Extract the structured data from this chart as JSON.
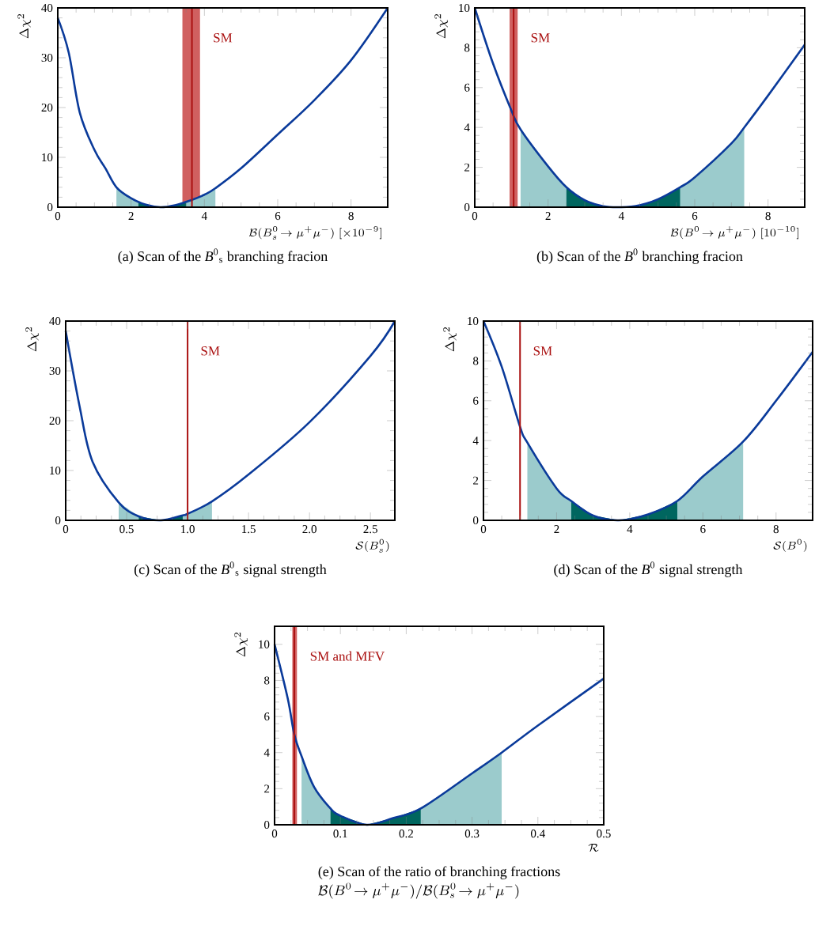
{
  "chart_data": [
    {
      "type": "line",
      "title": "(a) Scan of the *B*$^{0}$$_{s}$ branching fracion",
      "xlabel": "\\mathcal{B}(B^0_s\\!\\to\\mu^+\\mu^-)\\;[\\times10^{-9}]",
      "ylabel": "\\Delta\\chi^2",
      "xlim": [
        0,
        9
      ],
      "xticks": [
        0,
        2,
        4,
        6,
        8
      ],
      "ylim": [
        0,
        40
      ],
      "yticks": [
        0,
        10,
        20,
        30,
        40
      ],
      "series": [
        {
          "type": "area",
          "color": "#9bcbcc",
          "x": [
            1.6,
            2,
            2.4,
            2.8,
            3.2,
            3.6,
            4,
            4.3
          ],
          "values": [
            4,
            1.8,
            0.5,
            0,
            0.4,
            1.3,
            2.5,
            3.8
          ]
        },
        {
          "type": "area",
          "color": "#00665f",
          "x": [
            2.2,
            2.4,
            2.8,
            3.2,
            3.5
          ],
          "values": [
            1,
            0.5,
            0,
            0.4,
            1.1
          ]
        },
        {
          "color": "#0a3a9a",
          "x": [
            0,
            0.3,
            0.6,
            1,
            1.3,
            1.6,
            2,
            2.4,
            2.8,
            3.2,
            3.6,
            4,
            4.3,
            5,
            6,
            7,
            8,
            9
          ],
          "values": [
            38,
            31,
            19,
            11.5,
            7.8,
            4,
            1.8,
            0.5,
            0,
            0.4,
            1.3,
            2.5,
            3.8,
            7.8,
            14.6,
            21.5,
            29.5,
            40
          ]
        }
      ],
      "bands": [
        {
          "axis": "x",
          "from": 3.4,
          "to": 3.88,
          "color": "#d06060"
        }
      ],
      "ref_lines": [
        {
          "axis": "x",
          "value": 3.66,
          "label": "SM",
          "color": "#aa1111"
        }
      ]
    },
    {
      "type": "line",
      "title": "(b) Scan of the *B*$^{0}$ branching fracion",
      "xlabel": "\\mathcal{B}(B^0\\!\\to\\mu^+\\mu^-)\\;[10^{-10}]",
      "ylabel": "\\Delta\\chi^2",
      "xlim": [
        0,
        9
      ],
      "xticks": [
        0,
        2,
        4,
        6,
        8
      ],
      "ylim": [
        0,
        10
      ],
      "yticks": [
        0,
        2,
        4,
        6,
        8,
        10
      ],
      "series": [
        {
          "type": "area",
          "color": "#9bcbcc",
          "x": [
            1.25,
            2,
            2.5,
            3,
            3.5,
            4,
            4.5,
            5,
            5.6,
            6,
            7,
            7.35
          ],
          "values": [
            3.9,
            2.05,
            1.0,
            0.35,
            0.05,
            0,
            0.1,
            0.4,
            1.0,
            1.5,
            3.2,
            4
          ]
        },
        {
          "type": "area",
          "color": "#00665f",
          "x": [
            2.5,
            3,
            3.5,
            4,
            4.5,
            5,
            5.6
          ],
          "values": [
            1.0,
            0.35,
            0.05,
            0,
            0.1,
            0.4,
            1.0
          ]
        },
        {
          "color": "#0a3a9a",
          "x": [
            0,
            0.5,
            1,
            1.25,
            2,
            2.5,
            3,
            3.5,
            4,
            4.5,
            5,
            5.6,
            6,
            7,
            7.35,
            8,
            9
          ],
          "values": [
            10,
            7.2,
            4.85,
            3.9,
            2.05,
            1.0,
            0.35,
            0.05,
            0,
            0.1,
            0.4,
            1.0,
            1.5,
            3.2,
            4,
            5.6,
            8.15
          ]
        }
      ],
      "bands": [
        {
          "axis": "x",
          "from": 0.95,
          "to": 1.17,
          "color": "#d06060"
        }
      ],
      "ref_lines": [
        {
          "axis": "x",
          "value": 1.06,
          "label": "SM",
          "color": "#aa1111"
        }
      ]
    },
    {
      "type": "line",
      "title": "(c) Scan of the *B*$^{0}$$_{s}$ signal strength",
      "xlabel": "\\mathcal{S}(B^0_s)",
      "ylabel": "\\Delta\\chi^2",
      "xlim": [
        0,
        2.7
      ],
      "xticks": [
        0,
        0.5,
        {
          "value": 1,
          "label": "1.0"
        },
        1.5,
        {
          "value": 2,
          "label": "2.0"
        },
        2.5
      ],
      "ylim": [
        0,
        40
      ],
      "yticks": [
        0,
        10,
        20,
        30,
        40
      ],
      "series": [
        {
          "type": "area",
          "color": "#9bcbcc",
          "x": [
            0.435,
            0.6,
            0.78,
            0.96,
            1.0,
            1.2
          ],
          "values": [
            3.6,
            0.8,
            0,
            1.0,
            1.3,
            3.8
          ]
        },
        {
          "type": "area",
          "color": "#00665f",
          "x": [
            0.6,
            0.78,
            0.96
          ],
          "values": [
            0.8,
            0,
            1.0
          ]
        },
        {
          "color": "#0a3a9a",
          "x": [
            0,
            0.114,
            0.22,
            0.435,
            0.6,
            0.78,
            0.96,
            1.0,
            1.2,
            1.5,
            2.0,
            2.5,
            2.7
          ],
          "values": [
            38,
            22.9,
            11.8,
            3.6,
            0.8,
            0,
            1.0,
            1.3,
            3.8,
            9.2,
            19.7,
            33,
            40
          ]
        }
      ],
      "ref_lines": [
        {
          "axis": "x",
          "value": 1.0,
          "label": "SM",
          "color": "#aa1111"
        }
      ]
    },
    {
      "type": "line",
      "title": "(d) Scan of the *B*$^{0}$ signal strength",
      "xlabel": "\\mathcal{S}(B^0)",
      "ylabel": "\\Delta\\chi^2",
      "xlim": [
        0,
        9
      ],
      "xticks": [
        0,
        2,
        4,
        6,
        8
      ],
      "ylim": [
        0,
        10
      ],
      "yticks": [
        0,
        2,
        4,
        6,
        8,
        10
      ],
      "series": [
        {
          "type": "area",
          "color": "#9bcbcc",
          "x": [
            1.2,
            2,
            2.4,
            3,
            3.7,
            4.5,
            5.3,
            6,
            7.1
          ],
          "values": [
            3.9,
            1.6,
            0.97,
            0.24,
            0,
            0.3,
            0.97,
            2.2,
            3.95
          ]
        },
        {
          "type": "area",
          "color": "#00665f",
          "x": [
            2.4,
            3,
            3.7,
            4.5,
            5.3
          ],
          "values": [
            0.97,
            0.24,
            0,
            0.3,
            0.97
          ]
        },
        {
          "color": "#0a3a9a",
          "x": [
            0,
            0.5,
            1,
            1.2,
            2,
            2.4,
            3,
            3.7,
            4.5,
            5.3,
            6,
            7.1,
            8,
            9
          ],
          "values": [
            10,
            7.7,
            4.7,
            3.9,
            1.6,
            0.97,
            0.24,
            0,
            0.3,
            0.97,
            2.2,
            3.95,
            6.0,
            8.45
          ]
        }
      ],
      "ref_lines": [
        {
          "axis": "x",
          "value": 1.0,
          "label": "SM",
          "color": "#aa1111"
        }
      ]
    },
    {
      "type": "line",
      "title": "(e) Scan of the ratio of branching fractions",
      "subtitle": "\\mathcal{B}(B^0\\!\\to\\mu^+\\mu^-)/\\mathcal{B}(B^0_s\\!\\to\\mu^+\\mu^-)",
      "xlabel": "\\mathcal{R}",
      "ylabel": "\\Delta\\chi^2",
      "xlim": [
        0,
        0.5
      ],
      "xticks": [
        0,
        0.1,
        0.2,
        0.3,
        0.4,
        0.5
      ],
      "ylim": [
        0,
        11
      ],
      "yticks": [
        0,
        2,
        4,
        6,
        8,
        10
      ],
      "series": [
        {
          "type": "area",
          "color": "#9bcbcc",
          "x": [
            0.041,
            0.06,
            0.085,
            0.1,
            0.14,
            0.18,
            0.222,
            0.3,
            0.345
          ],
          "values": [
            3.8,
            2.1,
            0.9,
            0.5,
            0,
            0.37,
            0.9,
            2.85,
            4.0
          ]
        },
        {
          "type": "area",
          "color": "#00665f",
          "x": [
            0.085,
            0.1,
            0.14,
            0.18,
            0.222
          ],
          "values": [
            0.9,
            0.5,
            0,
            0.37,
            0.9
          ]
        },
        {
          "color": "#0a3a9a",
          "x": [
            0,
            0.02,
            0.03,
            0.041,
            0.06,
            0.085,
            0.1,
            0.14,
            0.18,
            0.222,
            0.3,
            0.345,
            0.4,
            0.5
          ],
          "values": [
            10,
            7.0,
            5.0,
            3.8,
            2.1,
            0.9,
            0.5,
            0,
            0.37,
            0.9,
            2.85,
            4.0,
            5.5,
            8.1
          ]
        }
      ],
      "bands": [
        {
          "axis": "x",
          "from": 0.027,
          "to": 0.034,
          "color": "#d06060"
        }
      ],
      "ref_lines": [
        {
          "axis": "x",
          "value": 0.03,
          "label": "SM and MFV",
          "color": "#aa1111"
        }
      ]
    }
  ]
}
